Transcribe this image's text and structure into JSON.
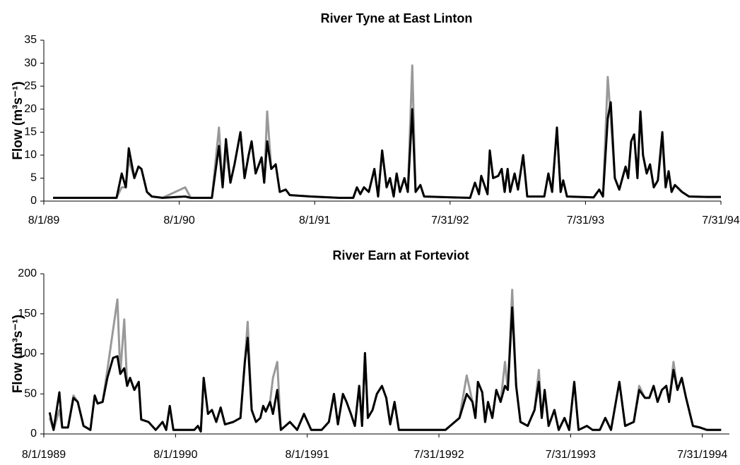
{
  "chart_data": [
    {
      "type": "line",
      "title": "River Tyne at East Linton",
      "y_label": "Flow (m³s⁻¹)",
      "x": [
        25,
        196,
        210,
        221,
        229,
        244,
        255,
        263,
        278,
        291,
        320,
        381,
        396,
        453,
        472,
        482,
        491,
        503,
        514,
        530,
        541,
        552,
        560,
        571,
        587,
        594,
        602,
        613,
        625,
        636,
        652,
        663,
        720,
        796,
        834,
        844,
        853,
        863,
        876,
        891,
        901,
        912,
        924,
        933,
        943,
        951,
        960,
        972,
        981,
        993,
        1002,
        1015,
        1025,
        1101,
        1149,
        1162,
        1173,
        1179,
        1196,
        1202,
        1211,
        1225,
        1234,
        1242,
        1250,
        1257,
        1269,
        1278,
        1292,
        1303,
        1330,
        1349,
        1360,
        1370,
        1383,
        1393,
        1400,
        1410,
        1482,
        1497,
        1507,
        1520,
        1528,
        1539,
        1551,
        1568,
        1575,
        1583,
        1591,
        1600,
        1608,
        1615,
        1625,
        1634,
        1644,
        1655,
        1667,
        1676,
        1684,
        1692,
        1701,
        1720,
        1739,
        1787,
        1825
      ],
      "series": [
        {
          "color": "#999999",
          "values": [
            0.7,
            0.7,
            3,
            3,
            9,
            5,
            7.5,
            7,
            2,
            1,
            0.7,
            3,
            0.7,
            0.7,
            16,
            3,
            11,
            4,
            8,
            15,
            5,
            10,
            13,
            6,
            9.5,
            4,
            19.5,
            7,
            8,
            2,
            2.5,
            1.3,
            1,
            0.7,
            0.7,
            3,
            1.5,
            3,
            2,
            7,
            1,
            11,
            3,
            5,
            1,
            6,
            2,
            5,
            2,
            29.5,
            2,
            3.5,
            1,
            0.8,
            0.7,
            4,
            1.5,
            5.5,
            1.5,
            11,
            5,
            5.5,
            7,
            2,
            7,
            2,
            6,
            2.5,
            10,
            1,
            1,
            1,
            6,
            2,
            16,
            2,
            4.5,
            1,
            0.8,
            2.5,
            1,
            27,
            18,
            5,
            2.5,
            7.5,
            5,
            13,
            14.5,
            5,
            19.5,
            10,
            6,
            8,
            3,
            4.5,
            13,
            3,
            6.5,
            2,
            3.5,
            2,
            1,
            0.9,
            0.9
          ]
        },
        {
          "color": "#000000",
          "values": [
            0.7,
            0.7,
            6,
            3,
            11.5,
            5,
            7.5,
            7,
            2,
            1,
            0.7,
            1,
            0.7,
            0.7,
            12,
            3,
            13.5,
            4,
            8,
            15,
            5,
            10,
            13,
            6,
            9.5,
            4,
            13,
            7,
            8,
            2,
            2.5,
            1.3,
            1,
            0.7,
            0.7,
            3,
            1.5,
            3,
            2,
            7,
            1,
            11,
            3,
            5,
            1,
            6,
            2,
            5,
            2,
            20,
            2,
            3.5,
            1,
            0.8,
            0.7,
            4,
            1.5,
            5.5,
            1.5,
            11,
            5,
            5.5,
            7,
            2,
            7,
            2,
            6,
            2.5,
            10,
            1,
            1,
            1,
            6,
            2,
            16,
            2,
            4.5,
            1,
            0.8,
            2.5,
            1,
            18,
            21.5,
            5,
            2.5,
            7.5,
            5,
            13,
            14.5,
            5,
            19.5,
            10,
            6,
            8,
            3,
            4.5,
            15,
            3,
            6.5,
            2,
            3.5,
            2,
            1,
            0.9,
            0.9
          ]
        }
      ],
      "xlim": [
        0,
        1825
      ],
      "xticks": [
        {
          "value": 0,
          "label": "8/1/89"
        },
        {
          "value": 365,
          "label": "8/1/90"
        },
        {
          "value": 730,
          "label": "8/1/91"
        },
        {
          "value": 1095,
          "label": "7/31/92"
        },
        {
          "value": 1460,
          "label": "7/31/93"
        },
        {
          "value": 1825,
          "label": "7/31/94"
        }
      ],
      "ylim": [
        0,
        35
      ],
      "yticks": [
        0,
        5,
        10,
        15,
        20,
        25,
        30,
        35
      ],
      "grid": false
    },
    {
      "type": "line",
      "title": "River Earn at Forteviot",
      "y_label": "Flow (m³s⁻¹)",
      "x": [
        16,
        27,
        43,
        51,
        67,
        82,
        94,
        110,
        129,
        141,
        149,
        163,
        176,
        192,
        204,
        212,
        223,
        231,
        239,
        251,
        263,
        270,
        290,
        310,
        329,
        339,
        349,
        359,
        388,
        417,
        427,
        435,
        443,
        455,
        466,
        478,
        490,
        502,
        525,
        545,
        557,
        565,
        576,
        588,
        600,
        608,
        615,
        627,
        635,
        647,
        657,
        682,
        702,
        721,
        741,
        770,
        790,
        804,
        815,
        829,
        839,
        851,
        862,
        874,
        882,
        890,
        898,
        911,
        923,
        937,
        949,
        960,
        972,
        984,
        1015,
        1055,
        1113,
        1152,
        1172,
        1188,
        1196,
        1203,
        1215,
        1223,
        1231,
        1243,
        1254,
        1266,
        1278,
        1286,
        1298,
        1309,
        1321,
        1341,
        1360,
        1372,
        1380,
        1388,
        1399,
        1415,
        1427,
        1443,
        1456,
        1470,
        1482,
        1505,
        1521,
        1541,
        1556,
        1572,
        1595,
        1611,
        1635,
        1650,
        1666,
        1678,
        1690,
        1701,
        1713,
        1725,
        1733,
        1745,
        1756,
        1768,
        1780,
        1799,
        1819,
        1838,
        1858,
        1877
      ],
      "series": [
        {
          "color": "#999999",
          "values": [
            20,
            5,
            30,
            8,
            8,
            48,
            40,
            10,
            5,
            48,
            38,
            40,
            80,
            130,
            168,
            75,
            143,
            60,
            70,
            55,
            65,
            18,
            15,
            5,
            15,
            5,
            35,
            5,
            5,
            5,
            10,
            3,
            70,
            25,
            30,
            15,
            33,
            12,
            15,
            20,
            90,
            140,
            30,
            15,
            20,
            35,
            28,
            40,
            70,
            90,
            5,
            15,
            5,
            25,
            5,
            5,
            15,
            50,
            12,
            50,
            40,
            25,
            10,
            60,
            10,
            101,
            20,
            30,
            50,
            60,
            45,
            12,
            40,
            5,
            5,
            5,
            5,
            20,
            73,
            40,
            20,
            65,
            52,
            15,
            40,
            20,
            55,
            40,
            90,
            55,
            180,
            60,
            15,
            10,
            30,
            80,
            20,
            55,
            10,
            30,
            5,
            20,
            5,
            65,
            5,
            10,
            5,
            5,
            20,
            5,
            65,
            10,
            15,
            60,
            45,
            45,
            60,
            40,
            55,
            60,
            40,
            90,
            55,
            70,
            45,
            10,
            8,
            5,
            5,
            5
          ]
        },
        {
          "color": "#000000",
          "values": [
            27,
            5,
            52,
            8,
            8,
            45,
            40,
            10,
            5,
            48,
            38,
            40,
            70,
            95,
            97,
            75,
            82,
            60,
            70,
            55,
            65,
            18,
            15,
            5,
            15,
            5,
            35,
            5,
            5,
            5,
            10,
            3,
            70,
            25,
            30,
            15,
            33,
            12,
            15,
            20,
            90,
            120,
            30,
            15,
            20,
            35,
            28,
            40,
            25,
            55,
            5,
            15,
            5,
            25,
            5,
            5,
            15,
            50,
            12,
            50,
            40,
            25,
            10,
            60,
            10,
            101,
            20,
            30,
            50,
            60,
            45,
            12,
            40,
            5,
            5,
            5,
            5,
            20,
            50,
            40,
            20,
            65,
            52,
            15,
            40,
            20,
            55,
            40,
            60,
            55,
            158,
            60,
            15,
            10,
            30,
            65,
            20,
            55,
            10,
            30,
            5,
            20,
            5,
            65,
            5,
            10,
            5,
            5,
            20,
            5,
            65,
            10,
            15,
            55,
            45,
            45,
            60,
            40,
            55,
            60,
            40,
            80,
            55,
            70,
            45,
            10,
            8,
            5,
            5,
            5
          ]
        }
      ],
      "xlim": [
        0,
        1900
      ],
      "xticks": [
        {
          "value": 0,
          "label": "8/1/1989"
        },
        {
          "value": 365,
          "label": "8/1/1990"
        },
        {
          "value": 730,
          "label": "8/1/1991"
        },
        {
          "value": 1095,
          "label": "7/31/1992"
        },
        {
          "value": 1460,
          "label": "7/31/1993"
        },
        {
          "value": 1825,
          "label": "7/31/1994"
        }
      ],
      "ylim": [
        0,
        200
      ],
      "yticks": [
        0,
        50,
        100,
        150,
        200
      ],
      "grid": false
    }
  ]
}
